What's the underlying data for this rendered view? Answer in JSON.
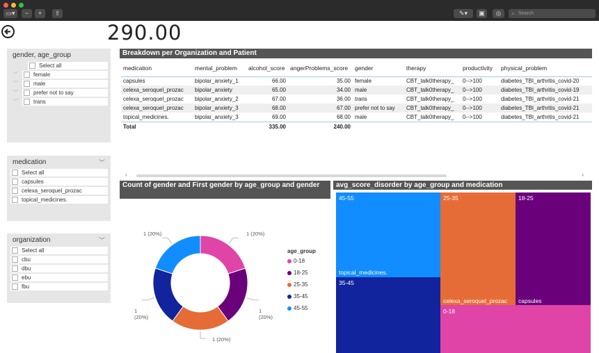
{
  "window": {
    "search_placeholder": "Search",
    "colors": {
      "close": "#ff5f57",
      "minimize": "#febc2e",
      "zoom": "#28c840"
    }
  },
  "kpi": {
    "value": "290.00"
  },
  "slicers": {
    "gender_age": {
      "title": "gender, age_group",
      "items": [
        "Select all",
        "female",
        "male",
        "prefer not to say",
        "trans"
      ]
    },
    "medication": {
      "title": "medication",
      "items": [
        "Select all",
        "capsules",
        "celexa_seroquel_prozac",
        "topical_medicines."
      ]
    },
    "organization": {
      "title": "organization",
      "items": [
        "Select all",
        "cbu",
        "dbu",
        "ebu",
        "fbu"
      ]
    }
  },
  "table": {
    "title": "Breakdown per Organization and Patient",
    "columns": [
      "medication",
      "mental_problem",
      "alcohol_score",
      "angerProblems_score",
      "gender",
      "therapy",
      "productivity",
      "physical_problem"
    ],
    "rows": [
      [
        "capsules",
        "bipolar_anxiety_1",
        "66.00",
        "35.00",
        "female",
        "CBT_talk0therapy_",
        "0-->100",
        "diabetes_TBI_arthritis_covid-20"
      ],
      [
        "celexa_seroquel_prozac",
        "bipolar_anxiety",
        "65.00",
        "34.00",
        "male",
        "CBT_talk0therapy_",
        "0-->100",
        "diabetes_TBI_arthritis_covid-19"
      ],
      [
        "celexa_seroquel_prozac",
        "bipolar_anxiety_2",
        "67.00",
        "36.00",
        "trans",
        "CBT_talk0therapy_",
        "0-->100",
        "diabetes_TBI_arthritis_covid-21"
      ],
      [
        "celexa_seroquel_prozac",
        "bipolar_anxiety_3",
        "68.00",
        "67.00",
        "prefer not to say",
        "CBT_talk0therapy_",
        "0-->100",
        "diabetes_TBI_arthritis_covid-21"
      ],
      [
        "topical_medicines.",
        "bipolar_anxiety_3",
        "69.00",
        "68.00",
        "male",
        "CBT_talk0therapy_",
        "0-->100",
        "diabetes_TBI_arthritis_covid-21"
      ]
    ],
    "total": {
      "label": "Total",
      "alcohol": "335.00",
      "anger": "240.00"
    }
  },
  "chart_data": [
    {
      "type": "pie",
      "title": "Count of gender and First gender by age_group and gender",
      "legend_title": "age_group",
      "legend_position": "right",
      "categories": [
        "0-18",
        "18-25",
        "25-35",
        "35-45",
        "45-55"
      ],
      "values": [
        1,
        1,
        1,
        1,
        1
      ],
      "colors": [
        "#e044a7",
        "#6b007b",
        "#e66c37",
        "#12239e",
        "#118dff"
      ],
      "labels": [
        "1 (20%)",
        "1 (20%)",
        "1 (20%)",
        "1 (20%)",
        "1 (20%)"
      ]
    },
    {
      "type": "treemap",
      "title": "avg_score_disorder by age_group and medication",
      "groups": [
        {
          "age_group": "45-55",
          "medication": "topical_medicines.",
          "color": "#118dff"
        },
        {
          "age_group": "35-45",
          "medication": "",
          "color": "#12239e"
        },
        {
          "age_group": "25-35",
          "medication": "celexa_seroquel_prozac",
          "color": "#e66c37"
        },
        {
          "age_group": "18-25",
          "medication": "capsules",
          "color": "#6b007b"
        },
        {
          "age_group": "0-18",
          "medication": "",
          "color": "#e044a7"
        }
      ]
    }
  ]
}
